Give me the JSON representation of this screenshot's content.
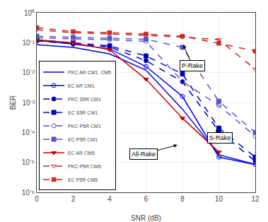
{
  "chart_data": {
    "type": "line",
    "title": "",
    "xlabel": "SNR (dB)",
    "ylabel": "BER",
    "log": "y",
    "grid": true,
    "legend": "lower left",
    "x": [
      0,
      2,
      4,
      6,
      8,
      10,
      12
    ],
    "xlim": [
      0,
      12
    ],
    "xticks": [
      0,
      2,
      4,
      6,
      8,
      10,
      12
    ],
    "ylim": [
      1e-06,
      1
    ],
    "yticks": [
      {
        "value": 1e-06,
        "label": "10⁻⁶"
      },
      {
        "value": 1e-05,
        "label": "10⁻⁵"
      },
      {
        "value": 0.0001,
        "label": "10⁻⁴"
      },
      {
        "value": 0.001,
        "label": "10⁻³"
      },
      {
        "value": 0.01,
        "label": "10⁻²"
      },
      {
        "value": 0.1,
        "label": "10⁻¹"
      },
      {
        "value": 1,
        "label": "10⁰"
      }
    ],
    "series": [
      {
        "name": "PKC AR CM1, CM5",
        "color": "#0000cc",
        "line_style": "solid",
        "marker": null,
        "values": [
          0.085,
          0.07,
          0.042,
          0.012,
          0.0006,
          1.8e-05,
          8.5e-06
        ]
      },
      {
        "name": "EC AR CM1",
        "color": "#0000ff",
        "line_style": "solid",
        "marker": "circle-open",
        "values": [
          0.12,
          0.09,
          0.062,
          0.016,
          0.0016,
          1.5e-05,
          8.5e-06
        ]
      },
      {
        "name": "PKC S5R CM1",
        "color": "#0000bb",
        "line_style": "dashed",
        "marker": "circle",
        "values": [
          0.115,
          0.092,
          0.072,
          0.025,
          0.005,
          0.00011,
          1.1e-05
        ]
      },
      {
        "name": "EC S5R CM1",
        "color": "#0000bb",
        "line_style": "dashed",
        "marker": "square",
        "values": [
          0.125,
          0.098,
          0.078,
          0.036,
          0.009,
          0.00014,
          1.5e-05
        ]
      },
      {
        "name": "PKC P5R CM1",
        "color": "#5555cc",
        "line_style": "dashed",
        "marker": "circle-open",
        "values": [
          0.145,
          0.135,
          0.125,
          0.11,
          0.005,
          0.0008,
          7.5e-05
        ]
      },
      {
        "name": "EC P5R CM1",
        "color": "#5555cc",
        "line_style": "dashed",
        "marker": "square",
        "values": [
          0.165,
          0.15,
          0.14,
          0.13,
          0.07,
          0.0011,
          0.0001
        ]
      },
      {
        "name": "EC AR CM5",
        "color": "#cc0000",
        "line_style": "solid",
        "marker": "triangle-down",
        "values": [
          0.125,
          0.098,
          0.058,
          0.006,
          0.0003,
          2.2e-05,
          null
        ]
      },
      {
        "name": "PKC P5R CM5",
        "color": "#cc2222",
        "line_style": "dashed",
        "marker": "triangle-down-open",
        "values": [
          0.27,
          0.215,
          0.195,
          0.175,
          0.155,
          0.125,
          0.013
        ]
      },
      {
        "name": "EC P5R CM5",
        "color": "#cc2222",
        "line_style": "dashed",
        "marker": "x",
        "values": [
          0.32,
          0.235,
          0.215,
          0.195,
          0.165,
          0.095,
          0.052
        ]
      }
    ],
    "annotations": [
      {
        "text": "P-Rake",
        "x": 8.55,
        "y": 0.017,
        "arrow_x": 8.05,
        "arrow_y": 0.085
      },
      {
        "text": "S-Rake",
        "x": 10.05,
        "y": 6.5e-05,
        "arrow_x": 9.85,
        "arrow_y": 0.00013
      },
      {
        "text": "All-Rake",
        "x": 5.85,
        "y": 1.9e-05,
        "arrow_x": 7.72,
        "arrow_y": 3.8e-05
      }
    ]
  }
}
